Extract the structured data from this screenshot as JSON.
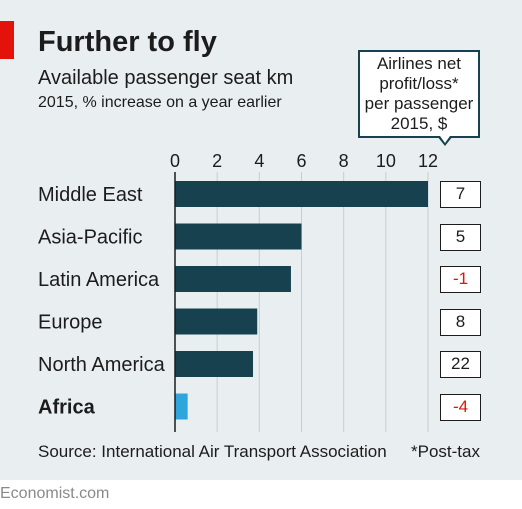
{
  "header": {
    "title": "Further to fly",
    "subtitle": "Available passenger seat km",
    "subnote": "2015, % increase on a year earlier"
  },
  "callout": {
    "lines": [
      "Airlines net",
      "profit/loss*",
      "per passenger",
      "2015, $"
    ]
  },
  "chart_data": {
    "type": "bar",
    "orientation": "horizontal",
    "title": "Further to fly",
    "subtitle": "Available passenger seat km",
    "categories": [
      "Middle East",
      "Asia-Pacific",
      "Latin America",
      "Europe",
      "North America",
      "Africa"
    ],
    "values": [
      12.0,
      6.0,
      5.5,
      3.9,
      3.7,
      0.6
    ],
    "xlim": [
      0,
      12
    ],
    "ticks": [
      "0",
      "2",
      "4",
      "6",
      "8",
      "10",
      "12"
    ],
    "profit_per_passenger": [
      "7",
      "5",
      "-1",
      "8",
      "22",
      "-4"
    ],
    "highlight": "Africa",
    "colors": {
      "bar": "#17414f",
      "highlight": "#2ea6dd",
      "negative": "#e3120b",
      "background": "#e9eef1",
      "accent": "#e3120b"
    }
  },
  "footer": {
    "source": "Source: International Air Transport Association",
    "footnote": "*Post-tax",
    "brand": "Economist.com"
  }
}
